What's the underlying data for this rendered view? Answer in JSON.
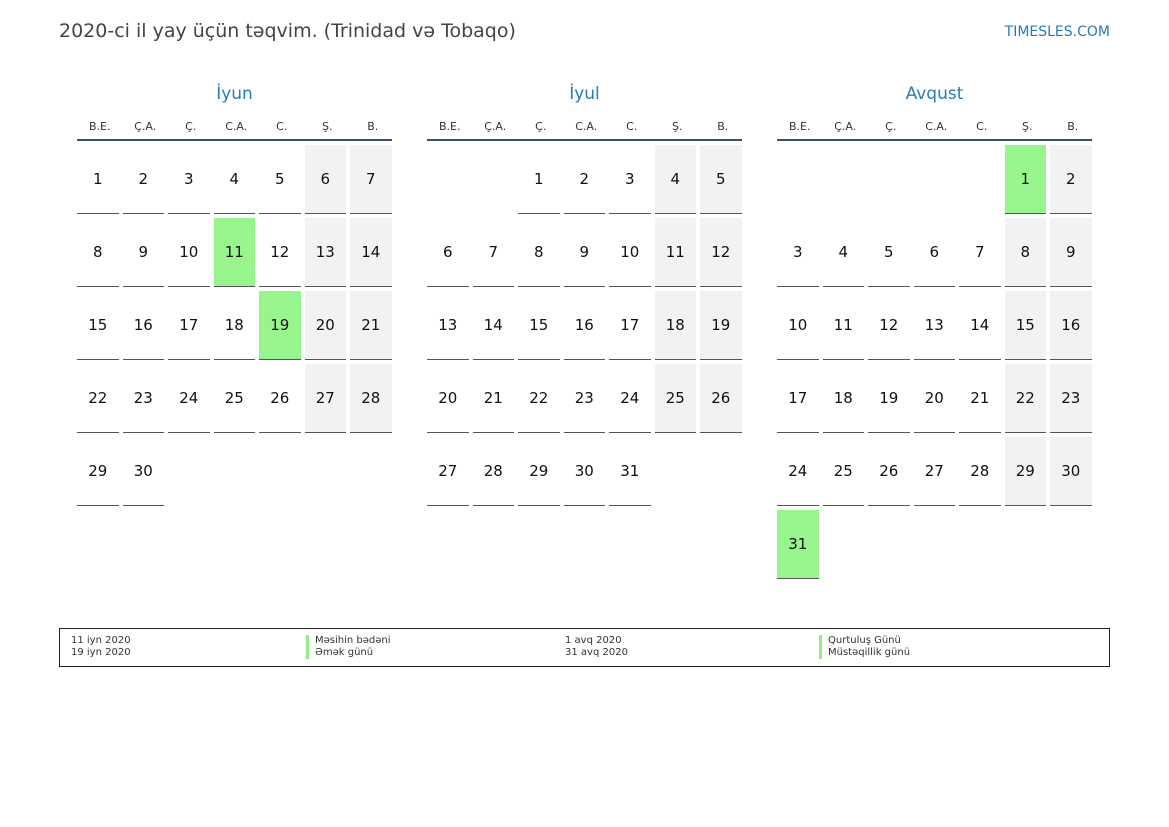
{
  "header": {
    "title": "2020-ci il yay üçün təqvim. (Trinidad və Tobaqo)",
    "site": "TIMESLES.COM"
  },
  "weekdays": [
    "B.E.",
    "Ç.A.",
    "Ç.",
    "C.A.",
    "C.",
    "Ş.",
    "B."
  ],
  "months": [
    {
      "name": "İyun",
      "start_offset": 0,
      "days": 30,
      "holidays": [
        11,
        19
      ]
    },
    {
      "name": "İyul",
      "start_offset": 2,
      "days": 31,
      "holidays": []
    },
    {
      "name": "Avqust",
      "start_offset": 5,
      "days": 31,
      "holidays": [
        1,
        31
      ]
    }
  ],
  "legend": {
    "col1_dates": [
      "11 iyn 2020",
      "19 iyn 2020"
    ],
    "col1_names": [
      "Məsihin bədəni",
      "Əmək günü"
    ],
    "col2_dates": [
      "1 avq 2020",
      "31 avq 2020"
    ],
    "col2_names": [
      "Qurtuluş Günü",
      "Müstəqillik günü"
    ]
  },
  "colors": {
    "holiday": "#98f58e",
    "weekend": "#f2f2f2",
    "accent": "#2a7ab8"
  }
}
